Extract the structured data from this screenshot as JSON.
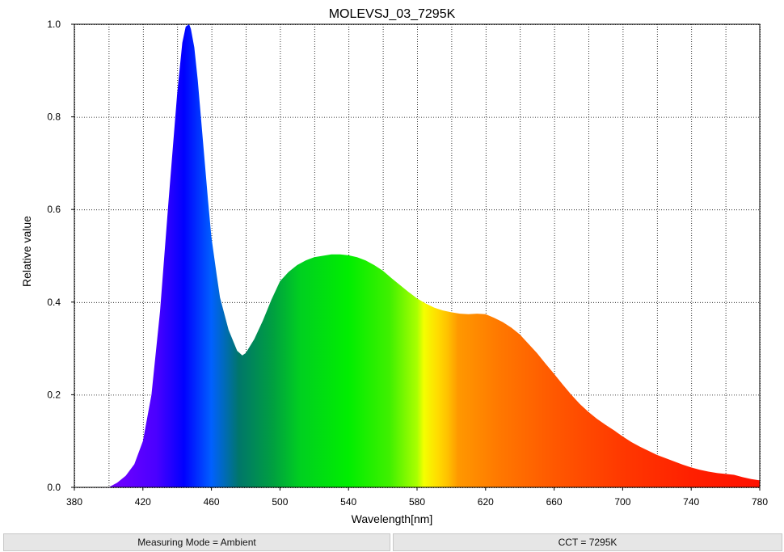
{
  "chart_data": {
    "type": "area",
    "title": "MOLEVSJ_03_7295K",
    "xlabel": "Wavelength[nm]",
    "ylabel": "Relative value",
    "xlim": [
      380,
      780
    ],
    "ylim": [
      0,
      1.0
    ],
    "xticks": [
      380,
      420,
      460,
      500,
      540,
      580,
      620,
      660,
      700,
      740,
      780
    ],
    "yticks": [
      0.0,
      0.2,
      0.4,
      0.6,
      0.8,
      1.0
    ],
    "ytick_labels": [
      "0.0",
      "0.2",
      "0.4",
      "0.6",
      "0.8",
      "1.0"
    ],
    "grid": true,
    "fill": "visible-spectrum gradient",
    "x": [
      400,
      405,
      410,
      415,
      420,
      425,
      430,
      435,
      440,
      443,
      445,
      447,
      448,
      450,
      452,
      455,
      458,
      460,
      463,
      465,
      470,
      475,
      478,
      480,
      485,
      490,
      495,
      500,
      505,
      510,
      515,
      520,
      525,
      530,
      535,
      540,
      545,
      550,
      555,
      560,
      565,
      570,
      575,
      580,
      585,
      590,
      595,
      600,
      605,
      610,
      615,
      620,
      625,
      630,
      635,
      640,
      645,
      650,
      655,
      660,
      665,
      670,
      675,
      680,
      685,
      690,
      695,
      700,
      705,
      710,
      715,
      720,
      725,
      730,
      735,
      740,
      745,
      750,
      755,
      760,
      765,
      770,
      775,
      780
    ],
    "y": [
      0.0,
      0.01,
      0.025,
      0.05,
      0.1,
      0.2,
      0.38,
      0.62,
      0.85,
      0.96,
      0.995,
      1.0,
      0.99,
      0.95,
      0.88,
      0.75,
      0.62,
      0.54,
      0.46,
      0.41,
      0.34,
      0.295,
      0.285,
      0.29,
      0.32,
      0.36,
      0.405,
      0.445,
      0.465,
      0.48,
      0.49,
      0.497,
      0.5,
      0.503,
      0.503,
      0.501,
      0.497,
      0.49,
      0.48,
      0.468,
      0.452,
      0.437,
      0.422,
      0.408,
      0.397,
      0.388,
      0.382,
      0.378,
      0.375,
      0.374,
      0.375,
      0.374,
      0.366,
      0.357,
      0.345,
      0.33,
      0.31,
      0.29,
      0.267,
      0.245,
      0.222,
      0.2,
      0.18,
      0.163,
      0.148,
      0.135,
      0.123,
      0.11,
      0.098,
      0.088,
      0.079,
      0.07,
      0.063,
      0.056,
      0.049,
      0.043,
      0.038,
      0.034,
      0.031,
      0.029,
      0.027,
      0.022,
      0.018,
      0.015
    ]
  },
  "footer": {
    "left": "Measuring Mode = Ambient",
    "right": "CCT = 7295K"
  }
}
